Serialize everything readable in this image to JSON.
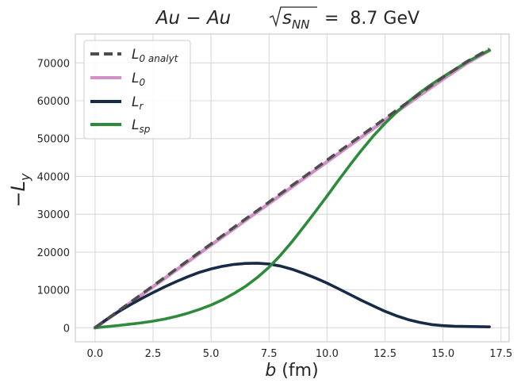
{
  "chart_data": {
    "type": "line",
    "title_left": "Au − Au",
    "title_right": "s",
    "title_sub": "NN",
    "title_value": " =  8.7 GeV",
    "xlabel_var": "b",
    "xlabel_unit": " (fm)",
    "ylabel": "−L",
    "ylabel_sub": "y",
    "xlim": [
      -0.85,
      17.85
    ],
    "ylim": [
      -3700,
      77600
    ],
    "xticks": [
      0.0,
      2.5,
      5.0,
      7.5,
      10.0,
      12.5,
      15.0,
      17.5
    ],
    "xtick_labels": [
      "0.0",
      "2.5",
      "5.0",
      "7.5",
      "10.0",
      "12.5",
      "15.0",
      "17.5"
    ],
    "yticks": [
      0,
      10000,
      20000,
      30000,
      40000,
      50000,
      60000,
      70000
    ],
    "ytick_labels": [
      "0",
      "10000",
      "20000",
      "30000",
      "40000",
      "50000",
      "60000",
      "70000"
    ],
    "grid": true,
    "legend_position": "top-left",
    "series": [
      {
        "name": "L",
        "name_sub": "0 analyt",
        "color": "#4d4d4d",
        "dash": true,
        "x": [
          0,
          1,
          2,
          3,
          4,
          5,
          6,
          7,
          8,
          9,
          10,
          11,
          12,
          13,
          14,
          15,
          16,
          17
        ],
        "y": [
          0,
          4450,
          8850,
          13300,
          17750,
          22150,
          26600,
          31000,
          35450,
          39850,
          44300,
          48700,
          53100,
          57500,
          61850,
          66150,
          70250,
          73700
        ]
      },
      {
        "name": "L",
        "name_sub": "0",
        "color": "#d191c6",
        "dash": false,
        "x": [
          0,
          1,
          2,
          3,
          4,
          5,
          6,
          7,
          8,
          9,
          10,
          11,
          12,
          13,
          14,
          15,
          16,
          17
        ],
        "y": [
          0,
          4300,
          8650,
          13050,
          17450,
          21850,
          26250,
          30650,
          35050,
          39450,
          43850,
          48250,
          52650,
          57050,
          61400,
          65700,
          69800,
          73300
        ]
      },
      {
        "name": "L",
        "name_sub": "r",
        "color": "#172a46",
        "dash": false,
        "x": [
          0,
          0.5,
          1,
          1.5,
          2,
          2.5,
          3,
          3.5,
          4,
          4.5,
          5,
          5.5,
          6,
          6.5,
          7,
          7.5,
          8,
          8.5,
          9,
          9.5,
          10,
          10.5,
          11,
          11.5,
          12,
          12.5,
          13,
          13.5,
          14,
          14.5,
          15,
          15.5,
          16,
          16.5,
          17
        ],
        "y": [
          0,
          2200,
          4200,
          6000,
          7700,
          9300,
          10800,
          12200,
          13500,
          14650,
          15550,
          16250,
          16750,
          17000,
          17050,
          16850,
          16300,
          15450,
          14350,
          13150,
          11800,
          10300,
          8750,
          7200,
          5750,
          4350,
          3150,
          2150,
          1400,
          850,
          550,
          400,
          350,
          300,
          250
        ]
      },
      {
        "name": "L",
        "name_sub": "sp",
        "color": "#2e8b3c",
        "dash": false,
        "x": [
          0,
          0.5,
          1,
          1.5,
          2,
          2.5,
          3,
          3.5,
          4,
          4.5,
          5,
          5.5,
          6,
          6.5,
          7,
          7.5,
          8,
          8.5,
          9,
          9.5,
          10,
          10.5,
          11,
          11.5,
          12,
          12.5,
          13,
          13.5,
          14,
          14.5,
          15,
          15.5,
          16,
          16.5,
          17
        ],
        "y": [
          0,
          300,
          600,
          950,
          1300,
          1750,
          2300,
          3000,
          3850,
          4850,
          6000,
          7400,
          9100,
          11000,
          13300,
          16000,
          19200,
          22800,
          26700,
          30700,
          34800,
          39000,
          43100,
          47000,
          50700,
          54000,
          57000,
          59700,
          62100,
          64300,
          66300,
          68200,
          70100,
          71800,
          73300
        ]
      }
    ]
  }
}
